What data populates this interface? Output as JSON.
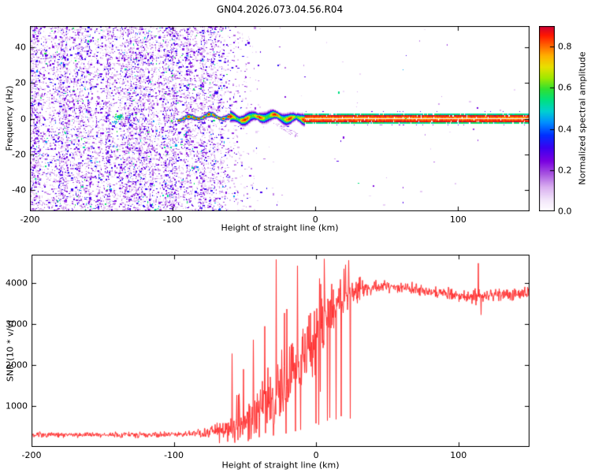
{
  "chart_data": [
    {
      "type": "heatmap",
      "title": "GN04.2026.073.04.56.R04",
      "xlabel": "Height of straight line (km)",
      "ylabel": "Frequency (Hz)",
      "xlim": [
        -200,
        150
      ],
      "ylim": [
        -52,
        52
      ],
      "xticks": [
        -200,
        -100,
        0,
        100
      ],
      "yticks": [
        -40,
        -20,
        0,
        20,
        40
      ],
      "grid": false,
      "colorbar": {
        "label": "Normalized spectral amplitude",
        "ticks": [
          0,
          0.2,
          0.4,
          0.6,
          0.8
        ],
        "tick_labels": [
          "0.0",
          "0.2",
          "0.4",
          "0.6",
          "0.8"
        ],
        "vmin": 0,
        "vmax": 0.9,
        "stops": [
          [
            0,
            "#ffffff"
          ],
          [
            0.06,
            "#f2e4fa"
          ],
          [
            0.13,
            "#d9aef0"
          ],
          [
            0.2,
            "#a855e0"
          ],
          [
            0.27,
            "#7a00e0"
          ],
          [
            0.34,
            "#3c00f0"
          ],
          [
            0.41,
            "#0030ff"
          ],
          [
            0.48,
            "#0090ff"
          ],
          [
            0.54,
            "#00d0d0"
          ],
          [
            0.6,
            "#00e080"
          ],
          [
            0.66,
            "#30e030"
          ],
          [
            0.72,
            "#a0e800"
          ],
          [
            0.78,
            "#e8e000"
          ],
          [
            0.84,
            "#ffb000"
          ],
          [
            0.9,
            "#ff6000"
          ],
          [
            0.95,
            "#ff1800"
          ],
          [
            1,
            "#cc0033"
          ]
        ]
      },
      "features": {
        "noise_field": {
          "description": "dense purple speckle noise across all frequencies, fading out between -65 and -40 km",
          "density_profile": [
            [
              -200,
              0.5
            ],
            [
              -80,
              0.5
            ],
            [
              -65,
              0.3
            ],
            [
              -55,
              0.14
            ],
            [
              -44,
              0.04
            ],
            [
              -34,
              0.01
            ],
            [
              -20,
              0.002
            ],
            [
              150,
              0.0012
            ]
          ],
          "amplitude_range": [
            0.07,
            0.4
          ]
        },
        "cyan_blobs": [
          {
            "x": -137,
            "f": 0.8,
            "r": 3.5,
            "t": 0.58,
            "n": 55
          },
          {
            "x": -141,
            "f": -2,
            "r": 2,
            "t": 0.5,
            "n": 16
          }
        ],
        "wavy_line": {
          "x_range": [
            -97,
            -8
          ],
          "freq_center": 1,
          "freq_wiggle": 2.5,
          "core_amplitude": 0.9
        },
        "straight_line": {
          "x_range": [
            -8,
            150
          ],
          "rows": [
            [
              2.9,
              0.58
            ],
            [
              1.9,
              0.97
            ],
            [
              0.9,
              0.88
            ],
            [
              -0.1,
              0.9
            ],
            [
              -1.1,
              0.97
            ],
            [
              -2.1,
              0.6
            ]
          ]
        },
        "faint_tail": {
          "from": [
            -28,
            -3
          ],
          "to": [
            -14,
            -9
          ]
        },
        "isolated_specks": [
          [
            113,
            6.5,
            0.28
          ],
          [
            110,
            -5.5,
            0.22
          ],
          [
            86,
            8.5,
            0.14
          ],
          [
            129,
            5,
            0.12
          ]
        ]
      }
    },
    {
      "type": "line",
      "xlabel": "Height of straight line (km)",
      "ylabel": "SNR (10 * v/v)",
      "xlim": [
        -200,
        150
      ],
      "ylim": [
        0,
        4700
      ],
      "xticks": [
        -200,
        -100,
        0,
        100
      ],
      "yticks": [
        1000,
        2000,
        3000,
        4000
      ],
      "color": "#ff3232",
      "grid": false,
      "envelope_mean": [
        [
          -200,
          295
        ],
        [
          -120,
          295
        ],
        [
          -95,
          305
        ],
        [
          -82,
          340
        ],
        [
          -72,
          390
        ],
        [
          -63,
          460
        ],
        [
          -56,
          540
        ],
        [
          -50,
          620
        ],
        [
          -44,
          760
        ],
        [
          -38,
          950
        ],
        [
          -32,
          1150
        ],
        [
          -26,
          1400
        ],
        [
          -20,
          1650
        ],
        [
          -14,
          1950
        ],
        [
          -8,
          2250
        ],
        [
          -2,
          2600
        ],
        [
          4,
          2950
        ],
        [
          10,
          3250
        ],
        [
          16,
          3500
        ],
        [
          24,
          3750
        ],
        [
          32,
          3870
        ],
        [
          45,
          3920
        ],
        [
          60,
          3890
        ],
        [
          75,
          3830
        ],
        [
          90,
          3770
        ],
        [
          102,
          3700
        ],
        [
          110,
          3650
        ],
        [
          116,
          3670
        ],
        [
          126,
          3710
        ],
        [
          138,
          3730
        ],
        [
          150,
          3770
        ]
      ],
      "noise_sigma": [
        [
          -200,
          75
        ],
        [
          -100,
          75
        ],
        [
          -85,
          95
        ],
        [
          -75,
          130
        ],
        [
          -66,
          200
        ],
        [
          -58,
          330
        ],
        [
          -50,
          480
        ],
        [
          -42,
          640
        ],
        [
          -34,
          790
        ],
        [
          -26,
          880
        ],
        [
          -18,
          940
        ],
        [
          -10,
          960
        ],
        [
          -2,
          860
        ],
        [
          6,
          720
        ],
        [
          14,
          560
        ],
        [
          22,
          420
        ],
        [
          30,
          280
        ],
        [
          40,
          200
        ],
        [
          55,
          160
        ],
        [
          80,
          150
        ],
        [
          105,
          160
        ],
        [
          115,
          210
        ],
        [
          125,
          150
        ],
        [
          150,
          155
        ]
      ],
      "spikes_up": [
        [
          -59,
          2280
        ],
        [
          -51,
          1900
        ],
        [
          -44,
          2620
        ],
        [
          -36,
          2950
        ],
        [
          -28,
          4580
        ],
        [
          -13,
          4430
        ],
        [
          114,
          4490
        ]
      ],
      "spikes_down": [
        [
          -68,
          95
        ],
        [
          -62,
          130
        ],
        [
          -55,
          170
        ],
        [
          -47,
          190
        ],
        [
          -40,
          240
        ],
        [
          -30,
          280
        ],
        [
          -21,
          330
        ],
        [
          -11,
          420
        ],
        [
          3,
          1350
        ],
        [
          116,
          3230
        ]
      ]
    }
  ]
}
